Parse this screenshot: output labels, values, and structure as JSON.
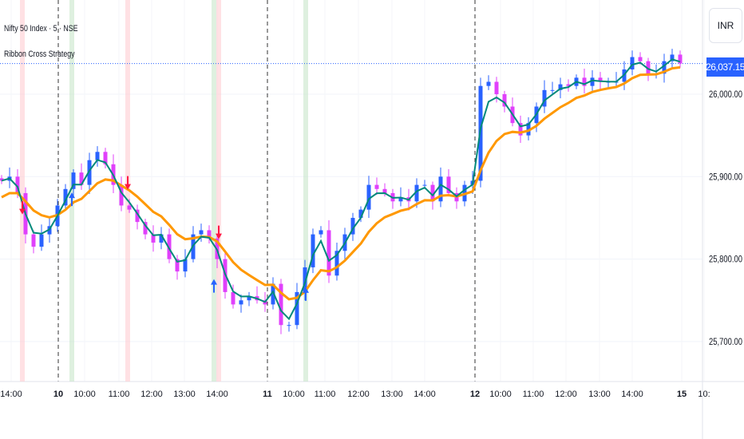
{
  "header": {
    "symbol_title": "Nifty 50 Index · 5 · NSE",
    "indicator": "Ribbon Cross Strategy",
    "currency": "INR"
  },
  "colors": {
    "up": "#2962ff",
    "down": "#e040fb",
    "fast_ma": "#00897b",
    "slow_ma": "#ff9800",
    "buy_shade": "#c8e6c9",
    "sell_shade": "#ffcdd2",
    "buy_arrow": "#2962ff",
    "sell_arrow": "#ff1744"
  },
  "chart_data": {
    "type": "candlestick",
    "title": "Nifty 50 Index · 5 · NSE",
    "last_price": "26,037.15",
    "ylim": [
      25650,
      26090
    ],
    "y_ticks": [
      {
        "v": 26000,
        "label": "26,000.00"
      },
      {
        "v": 25900,
        "label": "25,900.00"
      },
      {
        "v": 25800,
        "label": "25,800.00"
      },
      {
        "v": 25700,
        "label": "25,700.00"
      }
    ],
    "x_ticks": [
      {
        "i": 1.2,
        "label": "14:00"
      },
      {
        "i": 7.1,
        "label": "10",
        "bold": true,
        "sep": true
      },
      {
        "i": 10.4,
        "label": "10:00"
      },
      {
        "i": 14.7,
        "label": "11:00"
      },
      {
        "i": 18.8,
        "label": "12:00"
      },
      {
        "i": 22.9,
        "label": "13:00"
      },
      {
        "i": 27.0,
        "label": "14:00"
      },
      {
        "i": 33.3,
        "label": "11",
        "bold": true,
        "sep": true
      },
      {
        "i": 36.6,
        "label": "10:00"
      },
      {
        "i": 40.5,
        "label": "11:00"
      },
      {
        "i": 44.7,
        "label": "12:00"
      },
      {
        "i": 48.9,
        "label": "13:00"
      },
      {
        "i": 53.0,
        "label": "14:00"
      },
      {
        "i": 59.3,
        "label": "12",
        "bold": true,
        "sep": true
      },
      {
        "i": 62.5,
        "label": "10:00"
      },
      {
        "i": 66.6,
        "label": "11:00"
      },
      {
        "i": 70.7,
        "label": "12:00"
      },
      {
        "i": 74.9,
        "label": "13:00"
      },
      {
        "i": 79.0,
        "label": "14:00"
      },
      {
        "i": 85.2,
        "label": "15",
        "bold": true
      },
      {
        "i": 88.0,
        "label": "10:"
      }
    ],
    "closes": [
      25895,
      25900,
      25880,
      25830,
      25815,
      25830,
      25840,
      25865,
      25885,
      25905,
      25890,
      25920,
      25930,
      25915,
      25890,
      25865,
      25860,
      25845,
      25830,
      25820,
      25830,
      25800,
      25785,
      25800,
      25830,
      25835,
      25825,
      25800,
      25760,
      25745,
      25750,
      25755,
      25750,
      25745,
      25770,
      25720,
      25720,
      25760,
      25790,
      25830,
      25835,
      25780,
      25810,
      25830,
      25850,
      25860,
      25890,
      25885,
      25880,
      25870,
      25875,
      25870,
      25890,
      25890,
      25870,
      25900,
      25880,
      25870,
      25890,
      25895,
      26010,
      26015,
      26000,
      25985,
      25965,
      25950,
      25965,
      25985,
      26005,
      26005,
      26012,
      26010,
      26020,
      26010,
      26020,
      26015,
      26015,
      26015,
      26030,
      26045,
      26040,
      26025,
      26025,
      26040,
      26048,
      26037.15
    ],
    "signals": [
      {
        "i": 2.6,
        "type": "sell"
      },
      {
        "i": 8.8,
        "type": "buy"
      },
      {
        "i": 15.8,
        "type": "sell"
      },
      {
        "i": 26.6,
        "type": "buy"
      },
      {
        "i": 27.2,
        "type": "sell"
      },
      {
        "i": 38.1,
        "type": "buy"
      }
    ],
    "series": [
      {
        "name": "Fast MA"
      },
      {
        "name": "Slow MA"
      }
    ]
  }
}
